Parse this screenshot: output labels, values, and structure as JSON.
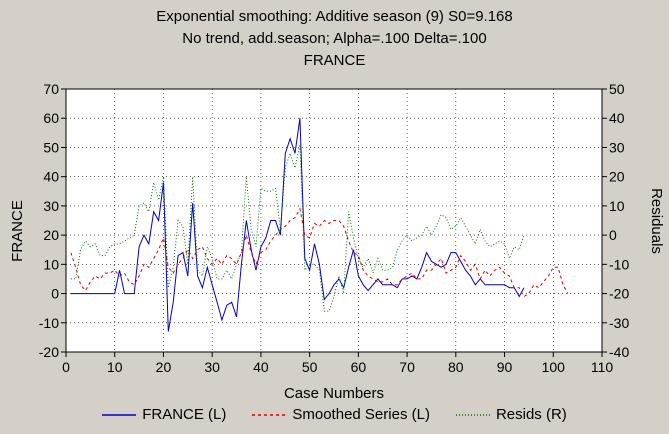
{
  "chart_data": {
    "type": "line",
    "title": "Exponential smoothing: Additive season (9) S0=9.168",
    "subtitle": "No trend, add.season; Alpha=.100  Delta=.100",
    "subtitle2": "FRANCE",
    "xlabel": "Case Numbers",
    "ylabel_left": "FRANCE",
    "ylabel_right": "Residuals",
    "xlim": [
      0,
      110
    ],
    "ylim_left": [
      -20,
      70
    ],
    "ylim_right": [
      -40,
      50
    ],
    "x_ticks": [
      "0",
      "10",
      "20",
      "30",
      "40",
      "50",
      "60",
      "70",
      "80",
      "90",
      "100",
      "110"
    ],
    "y_ticks_left": [
      "-20",
      "-10",
      "0",
      "10",
      "20",
      "30",
      "40",
      "50",
      "60",
      "70"
    ],
    "y_ticks_right": [
      "-40",
      "-30",
      "-20",
      "-10",
      "0",
      "10",
      "20",
      "30",
      "40",
      "50"
    ],
    "grid": true,
    "legend_position": "bottom",
    "series": [
      {
        "name": "FRANCE (L)",
        "axis": "left",
        "color": "#0000cc",
        "style": "solid",
        "x": [
          1,
          2,
          3,
          4,
          5,
          6,
          7,
          8,
          9,
          10,
          11,
          12,
          13,
          14,
          15,
          16,
          17,
          18,
          19,
          20,
          21,
          22,
          23,
          24,
          25,
          26,
          27,
          28,
          29,
          30,
          31,
          32,
          33,
          34,
          35,
          36,
          37,
          38,
          39,
          40,
          41,
          42,
          43,
          44,
          45,
          46,
          47,
          48,
          49,
          50,
          51,
          52,
          53,
          54,
          55,
          56,
          57,
          58,
          59,
          60,
          61,
          62,
          63,
          64,
          65,
          66,
          67,
          68,
          69,
          70,
          71,
          72,
          73,
          74,
          75,
          76,
          77,
          78,
          79,
          80,
          81,
          82,
          83,
          84,
          85,
          86,
          87,
          88,
          89,
          90,
          91,
          92,
          93,
          94
        ],
        "y": [
          0,
          0,
          0,
          0,
          0,
          0,
          0,
          0,
          0,
          0,
          8,
          0,
          0,
          0,
          16,
          20,
          17,
          28,
          25,
          38,
          -13,
          -3,
          13,
          14,
          6,
          31,
          6,
          2,
          9,
          3,
          -3,
          -9,
          -4,
          -3,
          -8,
          10,
          25,
          15,
          8,
          16,
          19,
          25,
          25,
          20,
          48,
          53,
          48,
          60,
          12,
          8,
          17,
          10,
          -2,
          0,
          3,
          5,
          2,
          9,
          15,
          6,
          3,
          1,
          3,
          5,
          3,
          3,
          3,
          2,
          5,
          5,
          6,
          5,
          9,
          14,
          11,
          10,
          9,
          10,
          14,
          14,
          11,
          8,
          6,
          3,
          5,
          3,
          3,
          3,
          3,
          3,
          2,
          2,
          -1,
          2
        ]
      },
      {
        "name": "Smoothed Series (L)",
        "axis": "left",
        "color": "#dd0000",
        "style": "dashed",
        "x": [
          1,
          2,
          3,
          4,
          5,
          6,
          7,
          8,
          9,
          10,
          11,
          12,
          13,
          14,
          15,
          16,
          17,
          18,
          19,
          20,
          21,
          22,
          23,
          24,
          25,
          26,
          27,
          28,
          29,
          30,
          31,
          32,
          33,
          34,
          35,
          36,
          37,
          38,
          39,
          40,
          41,
          42,
          43,
          44,
          45,
          46,
          47,
          48,
          49,
          50,
          51,
          52,
          53,
          54,
          55,
          56,
          57,
          58,
          59,
          60,
          61,
          62,
          63,
          64,
          65,
          66,
          67,
          68,
          69,
          70,
          71,
          72,
          73,
          74,
          75,
          76,
          77,
          78,
          79,
          80,
          81,
          82,
          83,
          84,
          85,
          86,
          87,
          88,
          89,
          90,
          91,
          92,
          93,
          94,
          95,
          96,
          97,
          98,
          99,
          100,
          101,
          102,
          103
        ],
        "y": [
          14,
          9,
          3,
          1,
          4,
          6,
          5,
          7,
          7,
          8,
          6,
          7,
          4,
          3,
          6,
          10,
          9,
          12,
          15,
          19,
          9,
          7,
          10,
          12,
          15,
          12,
          15,
          16,
          12,
          10,
          12,
          10,
          13,
          12,
          10,
          14,
          20,
          14,
          10,
          14,
          15,
          18,
          20,
          22,
          23,
          25,
          26,
          29,
          20,
          19,
          24,
          23,
          25,
          24,
          25,
          25,
          23,
          18,
          14,
          13,
          8,
          6,
          5,
          4,
          4,
          5,
          3,
          3,
          5,
          6,
          7,
          5,
          5,
          8,
          8,
          10,
          12,
          7,
          8,
          9,
          13,
          11,
          8,
          10,
          5,
          8,
          6,
          8,
          9,
          7,
          6,
          2,
          2,
          -1,
          0,
          3,
          2,
          4,
          6,
          9,
          9,
          3,
          0
        ]
      },
      {
        "name": "Resids (R)",
        "axis": "right",
        "color": "#007700",
        "style": "dotted",
        "x": [
          1,
          2,
          3,
          4,
          5,
          6,
          7,
          8,
          9,
          10,
          11,
          12,
          13,
          14,
          15,
          16,
          17,
          18,
          19,
          20,
          21,
          22,
          23,
          24,
          25,
          26,
          27,
          28,
          29,
          30,
          31,
          32,
          33,
          34,
          35,
          36,
          37,
          38,
          39,
          40,
          41,
          42,
          43,
          44,
          45,
          46,
          47,
          48,
          49,
          50,
          51,
          52,
          53,
          54,
          55,
          56,
          57,
          58,
          59,
          60,
          61,
          62,
          63,
          64,
          65,
          66,
          67,
          68,
          69,
          70,
          71,
          72,
          73,
          74,
          75,
          76,
          77,
          78,
          79,
          80,
          81,
          82,
          83,
          84,
          85,
          86,
          87,
          88,
          89,
          90,
          91,
          92,
          93,
          94
        ],
        "y": [
          -15,
          -15,
          -5,
          -2,
          -4,
          -3,
          -7,
          -7,
          -4,
          -3,
          -3,
          -2,
          -1,
          0,
          10,
          11,
          8,
          18,
          12,
          20,
          -18,
          -11,
          5,
          3,
          -10,
          20,
          -12,
          -14,
          -4,
          -8,
          -15,
          -15,
          -12,
          -15,
          -10,
          -6,
          20,
          2,
          -4,
          16,
          15,
          15,
          16,
          2,
          23,
          28,
          23,
          31,
          -12,
          -10,
          -10,
          -12,
          -26,
          -26,
          -21,
          -14,
          -20,
          8,
          -1,
          -8,
          -11,
          -8,
          -13,
          -8,
          -12,
          -12,
          -11,
          -5,
          -2,
          0,
          -2,
          -1,
          0,
          3,
          0,
          3,
          7,
          6,
          2,
          3,
          6,
          3,
          0,
          -3,
          2,
          -2,
          -4,
          -3,
          -2,
          -3,
          -8,
          -4,
          -5,
          0
        ]
      }
    ]
  },
  "legend": {
    "items": [
      "FRANCE (L)",
      "Smoothed Series (L)",
      "Resids (R)"
    ]
  }
}
